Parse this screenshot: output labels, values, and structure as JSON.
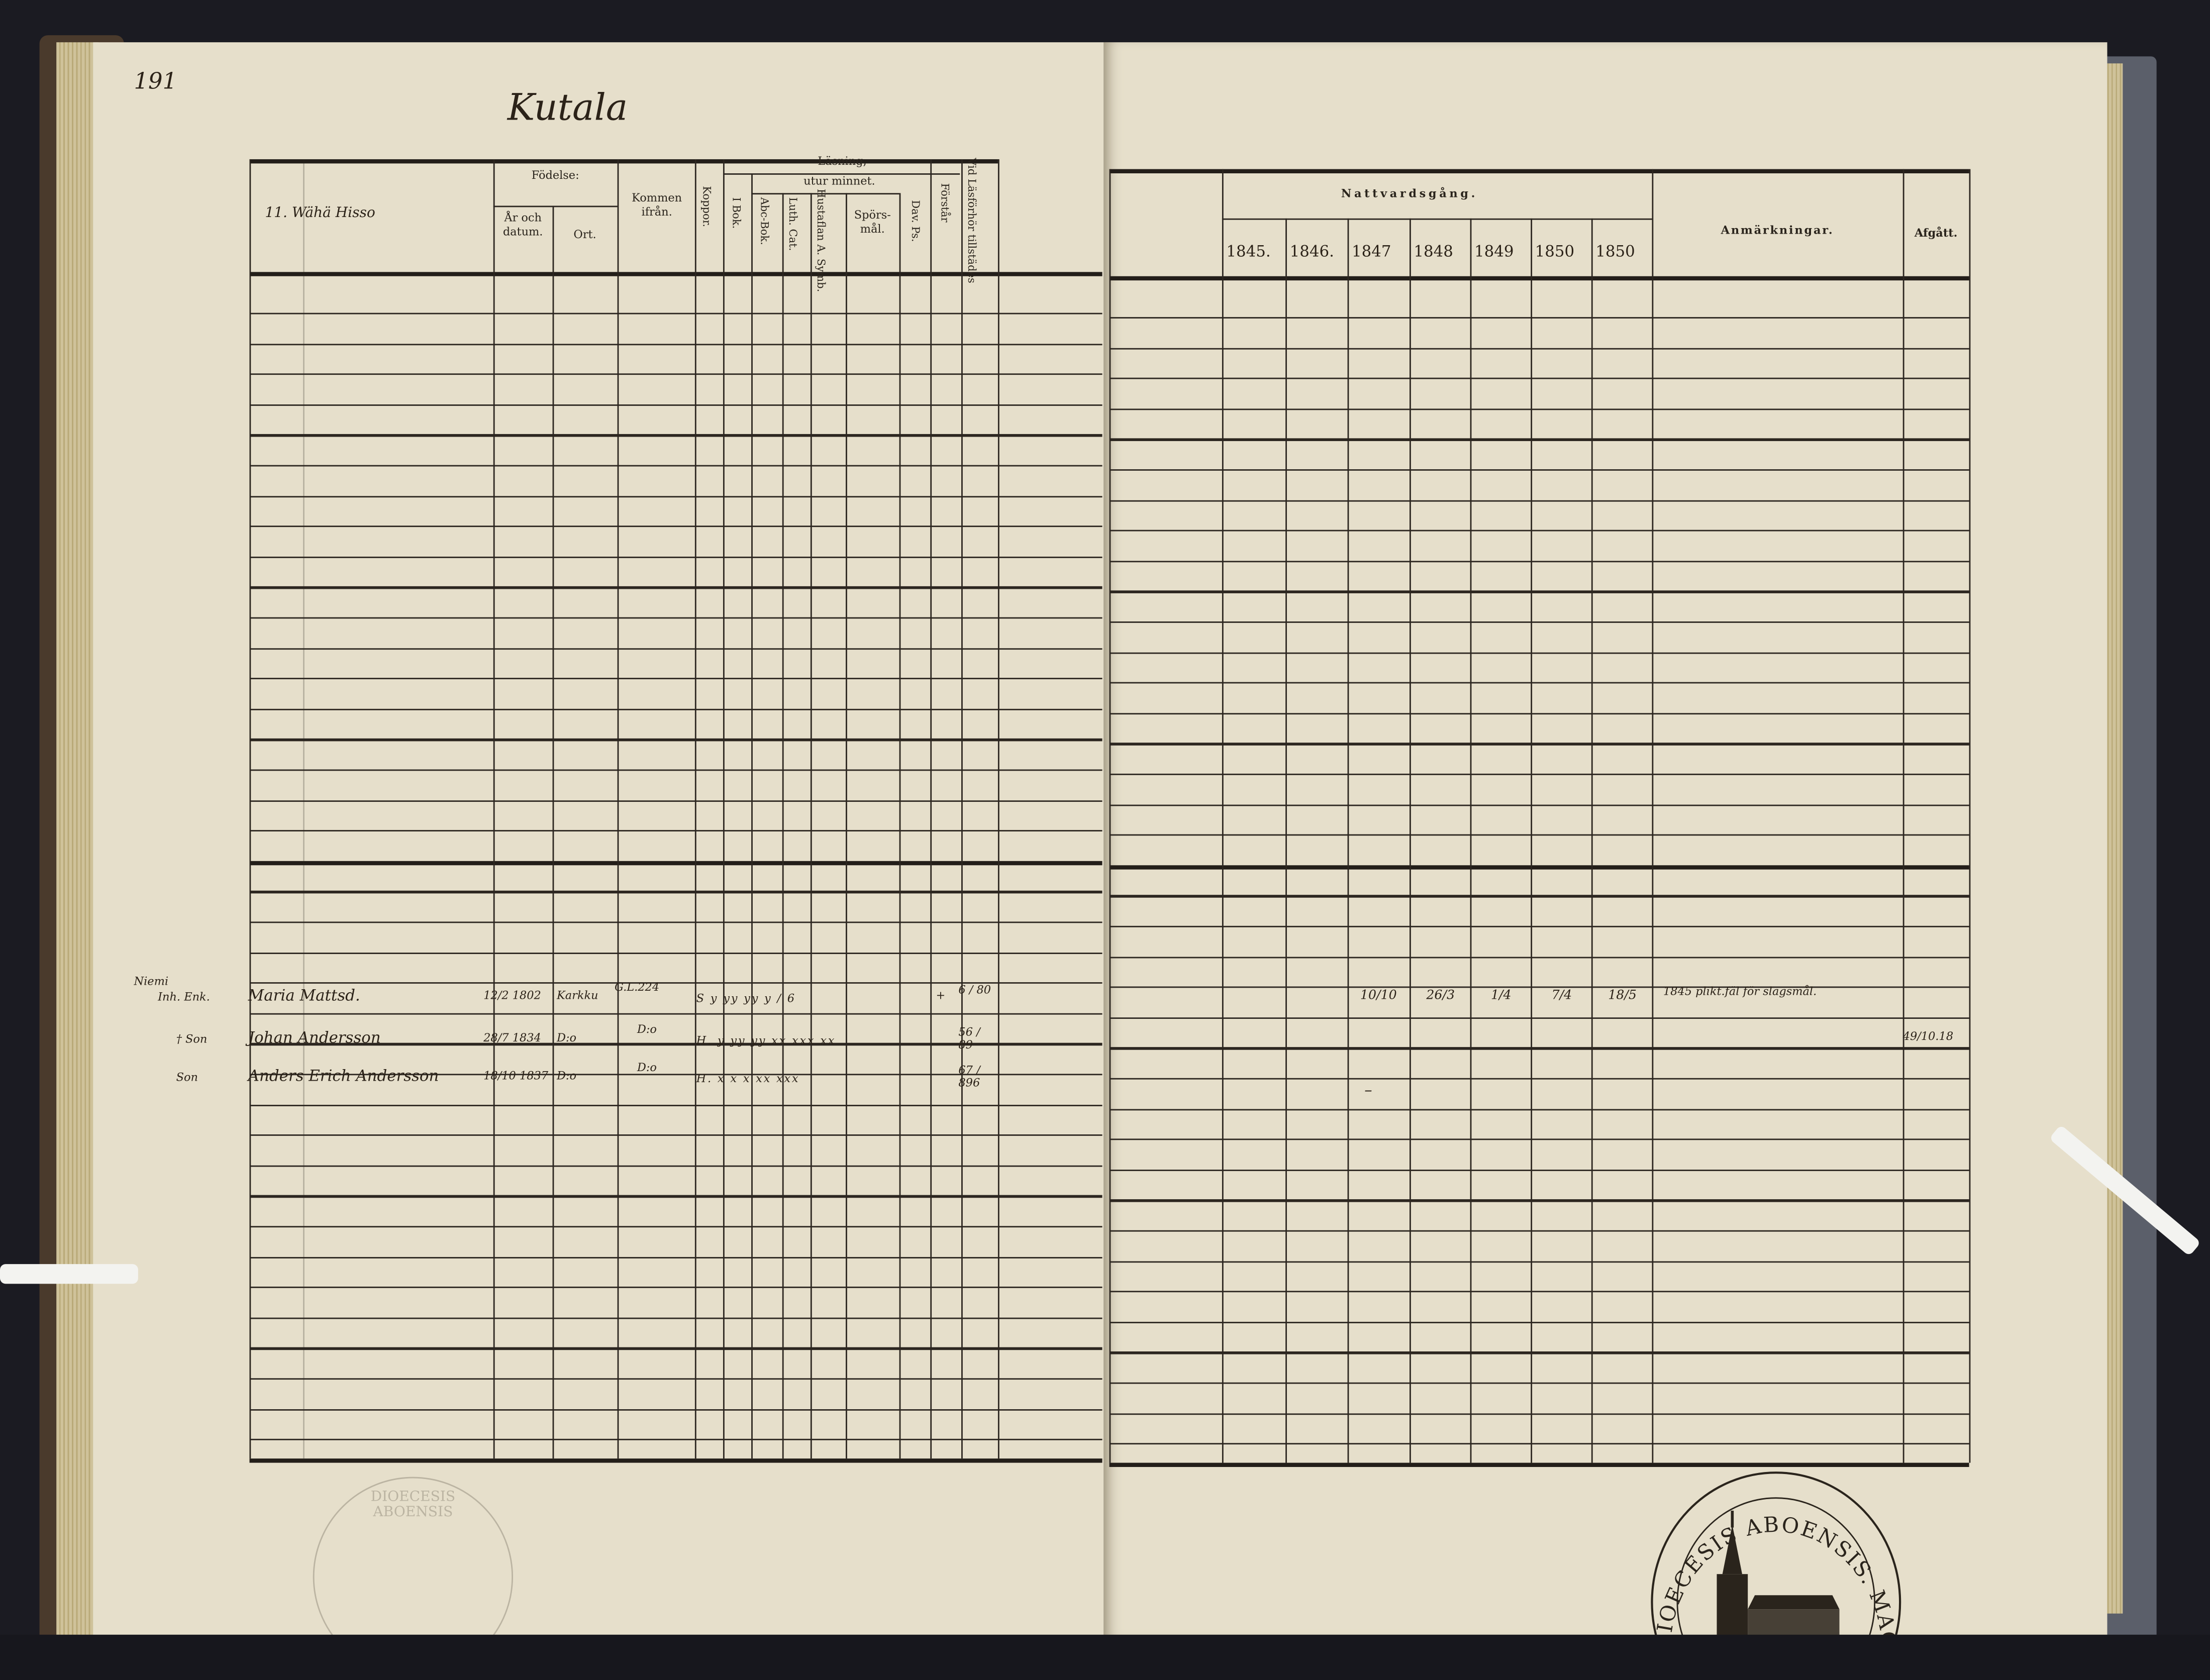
{
  "left_page": {
    "page_number": "191",
    "title": "Kutala",
    "household_heading": "11. Wähä Hisso",
    "headers": {
      "fodelse": "Födelse:",
      "ar_och_datum": "År och datum.",
      "ort": "Ort.",
      "kommen_ifran": "Kommen ifrån.",
      "koppor": "Koppor.",
      "lasning": "Läsning,",
      "i_bok": "I Bok.",
      "utur_minnet": "utur minnet.",
      "abc_bok": "Abc-Bok.",
      "luth_cat": "Luth. Cat.",
      "hustaflan": "Hustaflan A. Symb.",
      "sporsmal": "Spörs-mål.",
      "dav_ps": "Dav. Ps.",
      "forstar": "Förstår",
      "vid_lasforhor": "Vid Läsförhör tillstädes"
    },
    "entries": [
      {
        "place": "Niemi",
        "role": "Inh. Enk.",
        "name": "Maria Mattsd.",
        "date": "12/2 1802",
        "ort": "Karkku",
        "kommen": "G.L.224",
        "marks": "S  y  yy  yy  y  /  6",
        "forstar": "+",
        "forhor": "6 / 80"
      },
      {
        "place": "",
        "role": "† Son",
        "name": "Johan Andersson",
        "date": "28/7 1834",
        "ort": "D:o",
        "kommen": "D:o",
        "marks": "H.  y  yy  yy  xx  xxx xx",
        "forstar": "",
        "forhor": "56 / 89"
      },
      {
        "place": "",
        "role": "Son",
        "name": "Anders Erich Andersson",
        "date": "18/10 1837",
        "ort": "D:o",
        "kommen": "D:o",
        "marks": "H.  x  x  x  xx  xxx",
        "forstar": "",
        "forhor": "67 / 896"
      }
    ]
  },
  "right_page": {
    "headers": {
      "nattvardsgang": "Nattvardsgång.",
      "years": [
        "1845.",
        "1846.",
        "1847",
        "1848",
        "1849",
        "1850",
        "1850"
      ],
      "anmarkningar": "Anmärkningar.",
      "afgatt": "Afgått."
    },
    "entries": [
      {
        "communion": [
          "",
          "",
          "10/10",
          "26/3",
          "1/4",
          "7/4",
          "18/5"
        ],
        "remark": "1845 plikt.fäl för slagsmål.",
        "afgatt": ""
      },
      {
        "communion": [
          "",
          "",
          "",
          "",
          "",
          "",
          ""
        ],
        "remark": "",
        "afgatt": "49/10.18"
      },
      {
        "communion": [
          "",
          "",
          "–",
          "",
          "",
          "",
          ""
        ],
        "remark": "",
        "afgatt": ""
      }
    ]
  },
  "stamps": {
    "right": "DIOECESIS ABOENSIS. MAG. N. I.",
    "left": "DIOECESIS ABOENSIS"
  },
  "colors": {
    "paper": "#e6dfcb",
    "ink": "#2a241c",
    "background": "#1b1b22"
  }
}
